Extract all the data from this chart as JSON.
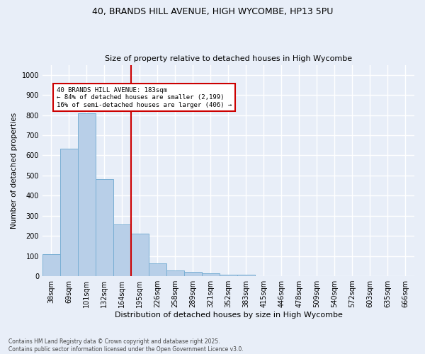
{
  "title1": "40, BRANDS HILL AVENUE, HIGH WYCOMBE, HP13 5PU",
  "title2": "Size of property relative to detached houses in High Wycombe",
  "xlabel": "Distribution of detached houses by size in High Wycombe",
  "ylabel": "Number of detached properties",
  "categories": [
    "38sqm",
    "69sqm",
    "101sqm",
    "132sqm",
    "164sqm",
    "195sqm",
    "226sqm",
    "258sqm",
    "289sqm",
    "321sqm",
    "352sqm",
    "383sqm",
    "415sqm",
    "446sqm",
    "478sqm",
    "509sqm",
    "540sqm",
    "572sqm",
    "603sqm",
    "635sqm",
    "666sqm"
  ],
  "values": [
    110,
    635,
    810,
    483,
    258,
    210,
    65,
    27,
    20,
    13,
    9,
    6,
    0,
    0,
    0,
    0,
    0,
    0,
    0,
    0,
    0
  ],
  "bar_color": "#b8cfe8",
  "bar_edge_color": "#7aafd4",
  "vline_x": 4.5,
  "vline_color": "#cc0000",
  "annotation_text": "40 BRANDS HILL AVENUE: 183sqm\n← 84% of detached houses are smaller (2,199)\n16% of semi-detached houses are larger (406) →",
  "ylim": [
    0,
    1050
  ],
  "yticks": [
    0,
    100,
    200,
    300,
    400,
    500,
    600,
    700,
    800,
    900,
    1000
  ],
  "bg_color": "#e8eef8",
  "grid_color": "#ffffff",
  "footer": "Contains HM Land Registry data © Crown copyright and database right 2025.\nContains public sector information licensed under the Open Government Licence v3.0."
}
